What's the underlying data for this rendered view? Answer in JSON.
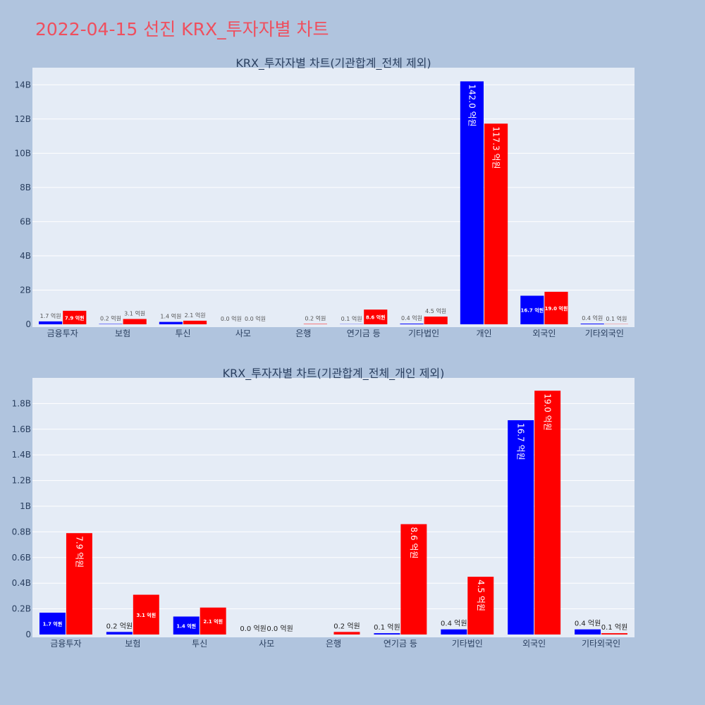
{
  "page": {
    "title": "2022-04-15 선진 KRX_투자자별 차트"
  },
  "chart_data": [
    {
      "type": "bar",
      "title": "KRX_투자자별 차트(기관합계_전체 제외)",
      "categories": [
        "금융투자",
        "보험",
        "투신",
        "사모",
        "은행",
        "연기금 등",
        "기타법인",
        "개인",
        "외국인",
        "기타외국인"
      ],
      "series": [
        {
          "color": "#0000ff",
          "values": [
            170000000,
            20000000,
            140000000,
            0,
            0,
            10000000,
            40000000,
            14200000000,
            1670000000,
            40000000
          ],
          "labels": [
            "1.7 억원",
            "0.2 억원",
            "1.4 억원",
            "0.0 억원",
            "",
            "0.1 억원",
            "0.4 억원",
            "142.0 억원",
            "16.7 억원",
            "0.4 억원"
          ]
        },
        {
          "color": "#ff0000",
          "values": [
            790000000,
            310000000,
            210000000,
            0,
            20000000,
            860000000,
            450000000,
            11730000000,
            1900000000,
            10000000
          ],
          "labels": [
            "7.9 억원",
            "3.1 억원",
            "2.1 억원",
            "0.0 억원",
            "0.2 억원",
            "8.6 억원",
            "4.5 억원",
            "117.3 억원",
            "19.0 억원",
            "0.1 억원"
          ]
        }
      ],
      "ylim": [
        0,
        15000000000
      ],
      "yticks": [
        0,
        2000000000,
        4000000000,
        6000000000,
        8000000000,
        10000000000,
        12000000000,
        14000000000
      ],
      "ytick_labels": [
        "0",
        "2B",
        "4B",
        "6B",
        "8B",
        "10B",
        "12B",
        "14B"
      ],
      "grid": true,
      "legend": "none"
    },
    {
      "type": "bar",
      "title": "KRX_투자자별 차트(기관합계_전체_개인 제외)",
      "categories": [
        "금융투자",
        "보험",
        "투신",
        "사모",
        "은행",
        "연기금 등",
        "기타법인",
        "외국인",
        "기타외국인"
      ],
      "series": [
        {
          "color": "#0000ff",
          "values": [
            170000000,
            20000000,
            140000000,
            0,
            0,
            10000000,
            40000000,
            1670000000,
            40000000
          ],
          "labels": [
            "1.7 억원",
            "0.2 억원",
            "1.4 억원",
            "0.0 억원",
            "",
            "0.1 억원",
            "0.4 억원",
            "16.7 억원",
            "0.4 억원"
          ]
        },
        {
          "color": "#ff0000",
          "values": [
            790000000,
            310000000,
            210000000,
            0,
            20000000,
            860000000,
            450000000,
            1900000000,
            10000000
          ],
          "labels": [
            "7.9 억원",
            "3.1 억원",
            "2.1 억원",
            "0.0 억원",
            "0.2 억원",
            "8.6 억원",
            "4.5 억원",
            "19.0 억원",
            "0.1 억원"
          ]
        }
      ],
      "ylim": [
        0,
        2000000000
      ],
      "yticks": [
        0,
        200000000,
        400000000,
        600000000,
        800000000,
        1000000000,
        1200000000,
        1400000000,
        1600000000,
        1800000000
      ],
      "ytick_labels": [
        "0",
        "0.2B",
        "0.4B",
        "0.6B",
        "0.8B",
        "1B",
        "1.2B",
        "1.4B",
        "1.6B",
        "1.8B"
      ],
      "grid": true,
      "legend": "none"
    }
  ]
}
